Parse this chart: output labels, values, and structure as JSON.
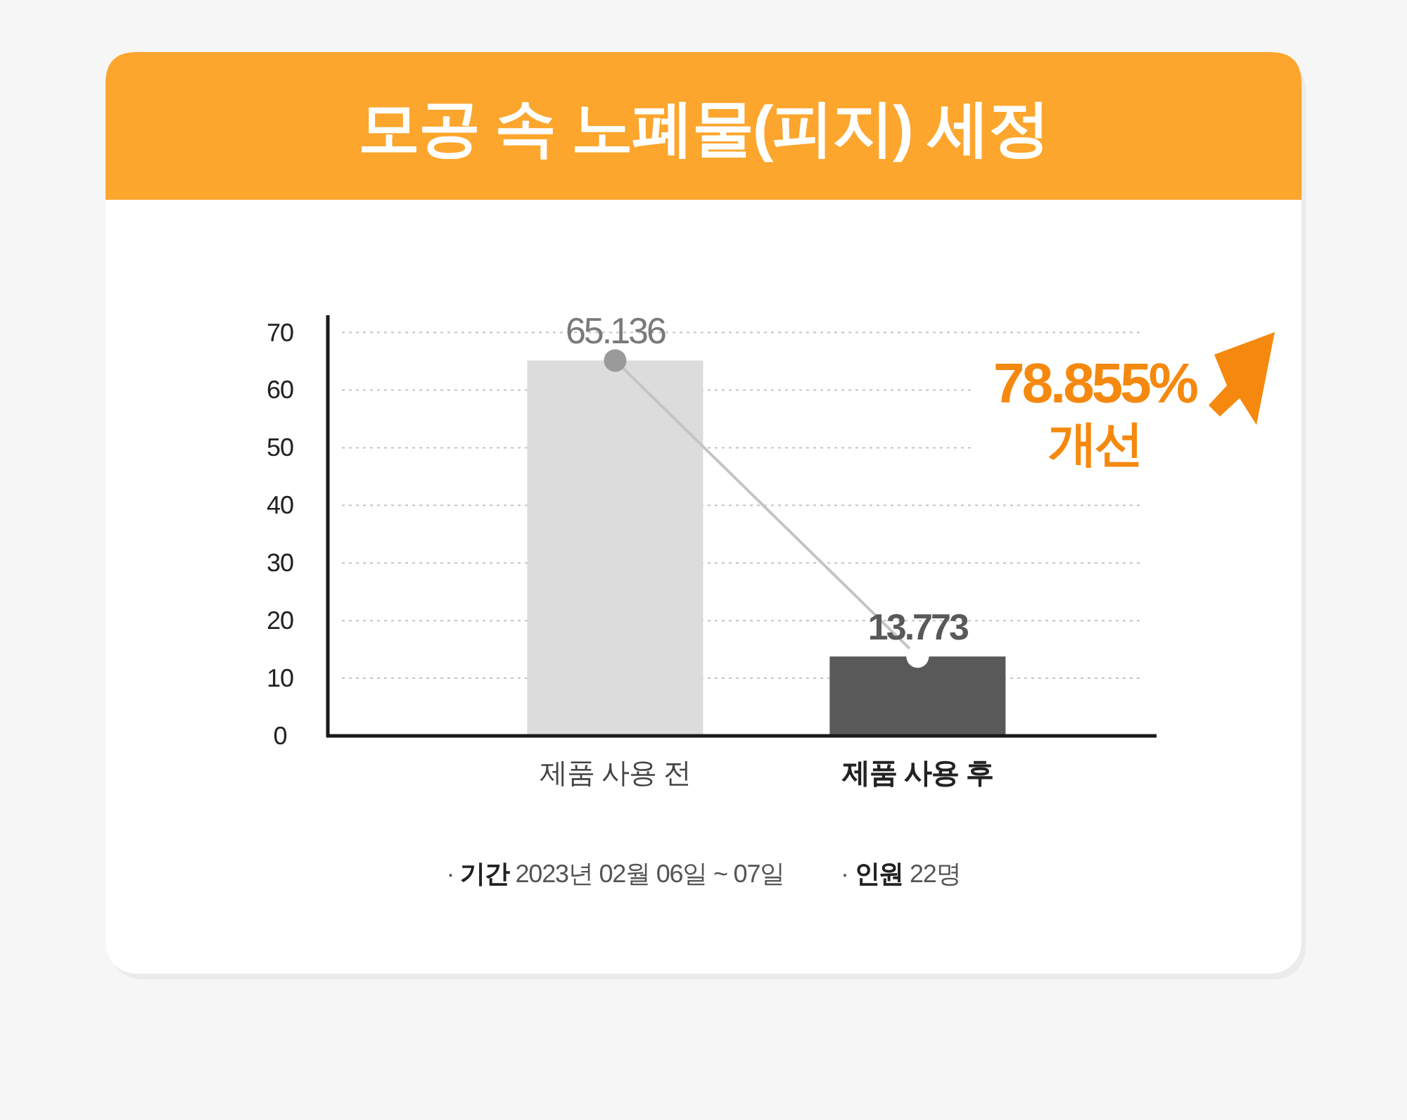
{
  "chart_data": {
    "type": "bar",
    "title": "모공 속 노폐물(피지) 세정",
    "categories": [
      "제품 사용 전",
      "제품 사용 후"
    ],
    "series": [
      {
        "colors": [
          "#dcdcdc",
          "#595959"
        ],
        "values": [
          65.136,
          13.773
        ]
      },
      {
        "type": "line",
        "color": "#c4c4c4",
        "colors": [
          "#9a9a9a",
          "#ffffff"
        ],
        "marker": "circle",
        "values": [
          65.136,
          13.773
        ],
        "value_labels": [
          "65.136",
          "13.773"
        ]
      }
    ],
    "ylim": [
      0,
      73
    ],
    "yticks": [
      0,
      10,
      20,
      30,
      40,
      50,
      60,
      70
    ],
    "grid": "y",
    "annotations": [
      "78.855% 개선",
      "· **기간** 2023년 02월 06일 ~ 07일",
      "· **인원** 22명"
    ]
  }
}
